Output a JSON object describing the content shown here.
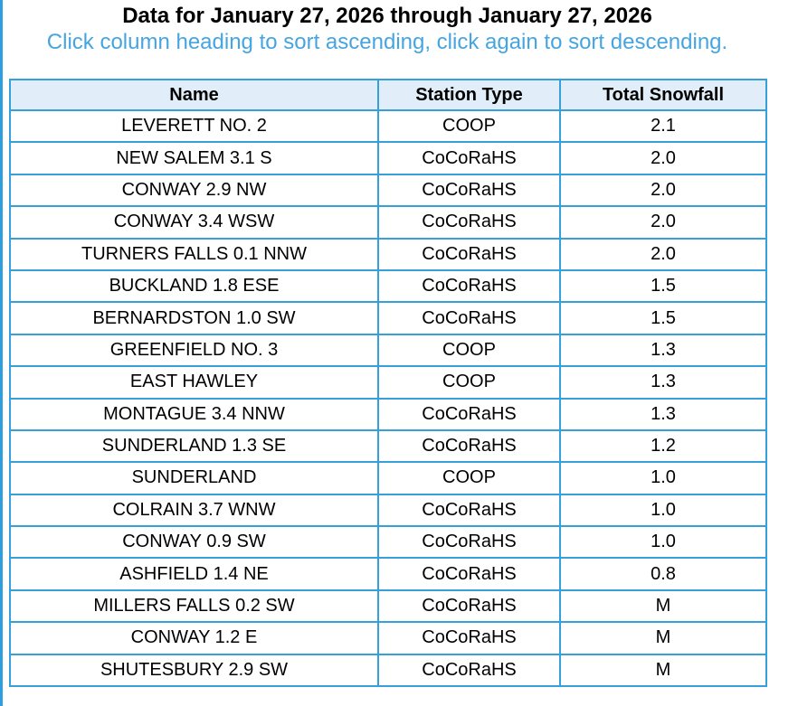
{
  "page": {
    "title": "Data for January 27, 2026 through January 27, 2026",
    "subtitle": "Click column heading to sort ascending, click again to sort descending."
  },
  "colors": {
    "table_border": "#36a0db",
    "left_edge_line": "#2d9fe0",
    "header_background": "#e1eef9",
    "subtitle_text": "#46a5e0",
    "title_text": "#000000"
  },
  "table": {
    "columns": [
      "Name",
      "Station Type",
      "Total Snowfall"
    ],
    "rows": [
      [
        "LEVERETT NO. 2",
        "COOP",
        "2.1"
      ],
      [
        "NEW SALEM 3.1 S",
        "CoCoRaHS",
        "2.0"
      ],
      [
        "CONWAY 2.9 NW",
        "CoCoRaHS",
        "2.0"
      ],
      [
        "CONWAY 3.4 WSW",
        "CoCoRaHS",
        "2.0"
      ],
      [
        "TURNERS FALLS 0.1 NNW",
        "CoCoRaHS",
        "2.0"
      ],
      [
        "BUCKLAND 1.8 ESE",
        "CoCoRaHS",
        "1.5"
      ],
      [
        "BERNARDSTON 1.0 SW",
        "CoCoRaHS",
        "1.5"
      ],
      [
        "GREENFIELD NO. 3",
        "COOP",
        "1.3"
      ],
      [
        "EAST HAWLEY",
        "COOP",
        "1.3"
      ],
      [
        "MONTAGUE 3.4 NNW",
        "CoCoRaHS",
        "1.3"
      ],
      [
        "SUNDERLAND 1.3 SE",
        "CoCoRaHS",
        "1.2"
      ],
      [
        "SUNDERLAND",
        "COOP",
        "1.0"
      ],
      [
        "COLRAIN 3.7 WNW",
        "CoCoRaHS",
        "1.0"
      ],
      [
        "CONWAY 0.9 SW",
        "CoCoRaHS",
        "1.0"
      ],
      [
        "ASHFIELD 1.4 NE",
        "CoCoRaHS",
        "0.8"
      ],
      [
        "MILLERS FALLS 0.2 SW",
        "CoCoRaHS",
        "M"
      ],
      [
        "CONWAY 1.2 E",
        "CoCoRaHS",
        "M"
      ],
      [
        "SHUTESBURY 2.9 SW",
        "CoCoRaHS",
        "M"
      ]
    ],
    "cell_names": [
      "station-name-cell",
      "station-type-cell",
      "total-snowfall-cell"
    ]
  }
}
